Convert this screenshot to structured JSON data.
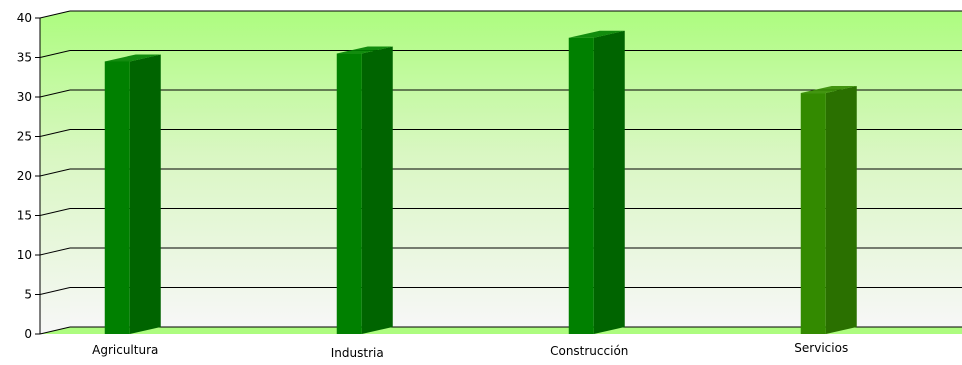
{
  "chart_data": {
    "type": "bar",
    "title": "",
    "xlabel": "",
    "ylabel": "",
    "categories": [
      "Agricultura",
      "Industria",
      "Construcción",
      "Servicios"
    ],
    "values": [
      34.5,
      35.5,
      37.5,
      30.5
    ],
    "ylim": [
      0,
      40
    ],
    "yticks": [
      0,
      5,
      10,
      15,
      20,
      25,
      30,
      35,
      40
    ],
    "grid": true,
    "legend": "none",
    "colors": {
      "bar_front": [
        "#008000",
        "#008000",
        "#008000",
        "#338a00"
      ],
      "bar_side": [
        "#006400",
        "#006400",
        "#006400",
        "#2a7000"
      ],
      "background_top": "#adfc7f",
      "background_bottom": "#f7f7f7",
      "floor": "#adfc7f"
    }
  }
}
